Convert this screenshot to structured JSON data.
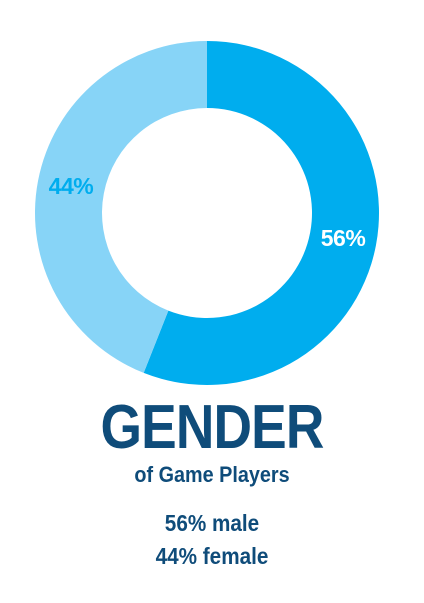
{
  "chart_data": {
    "type": "pie",
    "donut": true,
    "title": "GENDER",
    "subtitle": "of Game Players",
    "slices": [
      {
        "value": 56,
        "label": "56%",
        "color": "#00adee",
        "label_color": "#ffffff"
      },
      {
        "value": 44,
        "label": "44%",
        "color": "#87d4f7",
        "label_color": "#00adee"
      }
    ],
    "annotations": [
      "56% male",
      "44% female"
    ]
  }
}
